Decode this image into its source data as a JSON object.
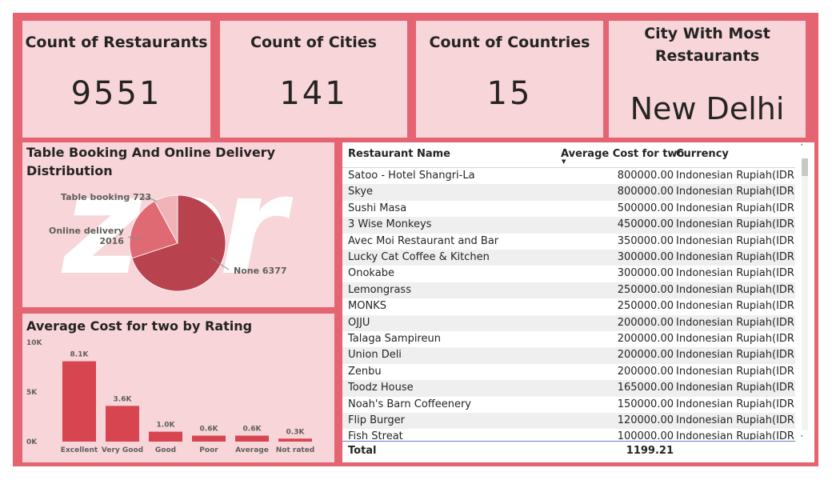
{
  "kpis": [
    {
      "title": "Count of Restaurants",
      "value": "9551"
    },
    {
      "title": "Count of Cities",
      "value": "141"
    },
    {
      "title": "Count of Countries",
      "value": "15"
    },
    {
      "title_line1": "City With Most",
      "title_line2": "Restaurants",
      "value": "New Delhi"
    }
  ],
  "watermark": "zor",
  "colors": {
    "border": "#e46471",
    "panel": "#f7d5d8",
    "bar": "#d64550",
    "pie_none": "#b8434f",
    "pie_online": "#e06a74",
    "pie_table": "#f0b3b8"
  },
  "pie_panel": {
    "title_line1": "Table Booking And Online Delivery",
    "title_line2": "Distribution"
  },
  "bar_panel": {
    "title": "Average Cost for two by Rating"
  },
  "chart_data": [
    {
      "type": "pie",
      "title": "Table Booking And Online Delivery Distribution",
      "labels": [
        "None",
        "Online delivery",
        "Table booking"
      ],
      "values": [
        6377,
        2016,
        723
      ],
      "label_text": [
        "None 6377",
        "Online delivery 2016",
        "Table booking 723"
      ]
    },
    {
      "type": "bar",
      "title": "Average Cost for two by Rating",
      "categories": [
        "Excellent",
        "Very Good",
        "Good",
        "Poor",
        "Average",
        "Not rated"
      ],
      "values": [
        8100,
        3600,
        1000,
        600,
        600,
        300
      ],
      "data_labels": [
        "8.1K",
        "3.6K",
        "1.0K",
        "0.6K",
        "0.6K",
        "0.3K"
      ],
      "yticks": [
        "10K",
        "5K",
        "0K"
      ],
      "ylim": [
        0,
        10000
      ]
    }
  ],
  "table": {
    "headers": [
      "Restaurant Name",
      "Average Cost for two",
      "Currency"
    ],
    "sort_arrow": "▼",
    "rows": [
      [
        "Satoo - Hotel Shangri-La",
        "800000.00",
        "Indonesian Rupiah(IDR)"
      ],
      [
        "Skye",
        "800000.00",
        "Indonesian Rupiah(IDR)"
      ],
      [
        "Sushi Masa",
        "500000.00",
        "Indonesian Rupiah(IDR)"
      ],
      [
        "3 Wise Monkeys",
        "450000.00",
        "Indonesian Rupiah(IDR)"
      ],
      [
        "Avec Moi Restaurant and Bar",
        "350000.00",
        "Indonesian Rupiah(IDR)"
      ],
      [
        "Lucky Cat Coffee & Kitchen",
        "300000.00",
        "Indonesian Rupiah(IDR)"
      ],
      [
        "Onokabe",
        "300000.00",
        "Indonesian Rupiah(IDR)"
      ],
      [
        "Lemongrass",
        "250000.00",
        "Indonesian Rupiah(IDR)"
      ],
      [
        "MONKS",
        "250000.00",
        "Indonesian Rupiah(IDR)"
      ],
      [
        "OJJU",
        "200000.00",
        "Indonesian Rupiah(IDR)"
      ],
      [
        "Talaga Sampireun",
        "200000.00",
        "Indonesian Rupiah(IDR)"
      ],
      [
        "Union Deli",
        "200000.00",
        "Indonesian Rupiah(IDR)"
      ],
      [
        "Zenbu",
        "200000.00",
        "Indonesian Rupiah(IDR)"
      ],
      [
        "Toodz House",
        "165000.00",
        "Indonesian Rupiah(IDR)"
      ],
      [
        "Noah's Barn Coffeenery",
        "150000.00",
        "Indonesian Rupiah(IDR)"
      ],
      [
        "Flip Burger",
        "120000.00",
        "Indonesian Rupiah(IDR)"
      ],
      [
        "Fish Streat",
        "100000.00",
        "Indonesian Rupiah(IDR)"
      ]
    ],
    "total_label": "Total",
    "total_value": "1199.21",
    "scroll_up": "˄",
    "scroll_down": "˅"
  }
}
